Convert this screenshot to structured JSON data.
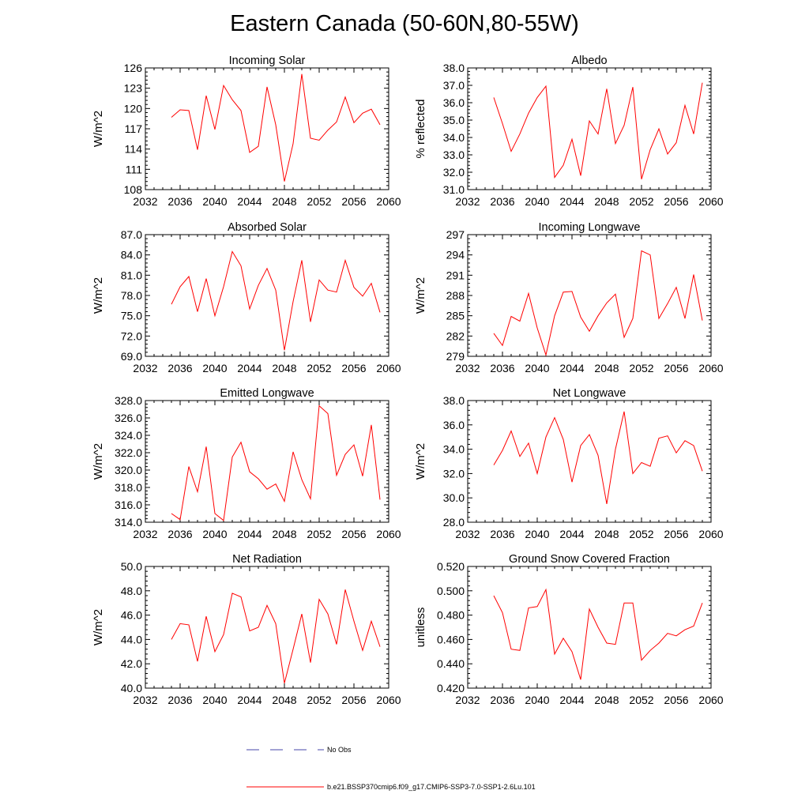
{
  "title": "Eastern Canada (50-60N,80-55W)",
  "legend": {
    "obs_label": "No Obs",
    "obs_color": "#4444aa",
    "model_label": "b.e21.BSSP370cmip6.f09_g17.CMIP6-SSP3-7.0-SSP1-2.6Lu.101",
    "model_color": "#ff0000"
  },
  "chart_data": [
    {
      "type": "line",
      "title": "Incoming Solar",
      "ylabel": "W/m^2",
      "xlim": [
        2032,
        2060
      ],
      "x_ticks": [
        "2032",
        "2036",
        "2040",
        "2044",
        "2048",
        "2052",
        "2056",
        "2060"
      ],
      "ylim": [
        108,
        126
      ],
      "y_ticks": [
        "108",
        "111",
        "114",
        "117",
        "120",
        "123",
        "126"
      ],
      "color": "#ff0000",
      "x": [
        2035,
        2036,
        2037,
        2038,
        2039,
        2040,
        2041,
        2042,
        2043,
        2044,
        2045,
        2046,
        2047,
        2048,
        2049,
        2050,
        2051,
        2052,
        2053,
        2054,
        2055,
        2056,
        2057,
        2058,
        2059
      ],
      "values": [
        118.7,
        119.8,
        119.7,
        113.9,
        121.9,
        116.9,
        123.4,
        121.3,
        119.7,
        113.5,
        114.4,
        123.2,
        117.6,
        109.2,
        114.8,
        125.1,
        115.6,
        115.3,
        116.8,
        118.0,
        121.7,
        117.9,
        119.3,
        119.9,
        117.6
      ]
    },
    {
      "type": "line",
      "title": "Albedo",
      "ylabel": "% reflected",
      "xlim": [
        2032,
        2060
      ],
      "x_ticks": [
        "2032",
        "2036",
        "2040",
        "2044",
        "2048",
        "2052",
        "2056",
        "2060"
      ],
      "ylim": [
        31,
        38
      ],
      "y_ticks": [
        "31.0",
        "32.0",
        "33.0",
        "34.0",
        "35.0",
        "36.0",
        "37.0",
        "38.0"
      ],
      "color": "#ff0000",
      "x": [
        2035,
        2036,
        2037,
        2038,
        2039,
        2040,
        2041,
        2042,
        2043,
        2044,
        2045,
        2046,
        2047,
        2048,
        2049,
        2050,
        2051,
        2052,
        2053,
        2054,
        2055,
        2056,
        2057,
        2058,
        2059
      ],
      "values": [
        36.3,
        34.8,
        33.2,
        34.2,
        35.4,
        36.3,
        36.95,
        31.7,
        32.4,
        33.9,
        31.8,
        34.95,
        34.2,
        36.8,
        33.65,
        34.7,
        36.9,
        31.6,
        33.3,
        34.5,
        33.05,
        33.7,
        35.85,
        34.2,
        37.15
      ]
    },
    {
      "type": "line",
      "title": "Absorbed Solar",
      "ylabel": "W/m^2",
      "xlim": [
        2032,
        2060
      ],
      "x_ticks": [
        "2032",
        "2036",
        "2040",
        "2044",
        "2048",
        "2052",
        "2056",
        "2060"
      ],
      "ylim": [
        69,
        87
      ],
      "y_ticks": [
        "69.0",
        "72.0",
        "75.0",
        "78.0",
        "81.0",
        "84.0",
        "87.0"
      ],
      "color": "#ff0000",
      "x": [
        2035,
        2036,
        2037,
        2038,
        2039,
        2040,
        2041,
        2042,
        2043,
        2044,
        2045,
        2046,
        2047,
        2048,
        2049,
        2050,
        2051,
        2052,
        2053,
        2054,
        2055,
        2056,
        2057,
        2058,
        2059
      ],
      "values": [
        76.7,
        79.3,
        80.8,
        75.6,
        80.5,
        75.0,
        79.3,
        84.5,
        82.4,
        76.0,
        79.5,
        82.0,
        78.8,
        69.9,
        77.1,
        83.2,
        74.1,
        80.3,
        78.8,
        78.5,
        83.2,
        79.2,
        77.9,
        79.8,
        75.5
      ]
    },
    {
      "type": "line",
      "title": "Incoming Longwave",
      "ylabel": "W/m^2",
      "xlim": [
        2032,
        2060
      ],
      "x_ticks": [
        "2032",
        "2036",
        "2040",
        "2044",
        "2048",
        "2052",
        "2056",
        "2060"
      ],
      "ylim": [
        279,
        297
      ],
      "y_ticks": [
        "279",
        "282",
        "285",
        "288",
        "291",
        "294",
        "297"
      ],
      "color": "#ff0000",
      "x": [
        2035,
        2036,
        2037,
        2038,
        2039,
        2040,
        2041,
        2042,
        2043,
        2044,
        2045,
        2046,
        2047,
        2048,
        2049,
        2050,
        2051,
        2052,
        2053,
        2054,
        2055,
        2056,
        2057,
        2058,
        2059
      ],
      "values": [
        282.4,
        280.6,
        284.9,
        284.2,
        288.3,
        283.2,
        279.2,
        285.0,
        288.5,
        288.6,
        284.8,
        282.7,
        285.0,
        286.9,
        288.2,
        281.8,
        284.6,
        294.6,
        294.0,
        284.6,
        286.8,
        289.2,
        284.6,
        291.1,
        284.3
      ]
    },
    {
      "type": "line",
      "title": "Emitted Longwave",
      "ylabel": "W/m^2",
      "xlim": [
        2032,
        2060
      ],
      "x_ticks": [
        "2032",
        "2036",
        "2040",
        "2044",
        "2048",
        "2052",
        "2056",
        "2060"
      ],
      "ylim": [
        314,
        328
      ],
      "y_ticks": [
        "314.0",
        "316.0",
        "318.0",
        "320.0",
        "322.0",
        "324.0",
        "326.0",
        "328.0"
      ],
      "color": "#ff0000",
      "x": [
        2035,
        2036,
        2037,
        2038,
        2039,
        2040,
        2041,
        2042,
        2043,
        2044,
        2045,
        2046,
        2047,
        2048,
        2049,
        2050,
        2051,
        2052,
        2053,
        2054,
        2055,
        2056,
        2057,
        2058,
        2059
      ],
      "values": [
        315.0,
        314.3,
        320.4,
        317.5,
        322.7,
        315.0,
        314.2,
        321.5,
        323.2,
        319.8,
        319.0,
        317.8,
        318.4,
        316.4,
        322.1,
        318.9,
        316.7,
        327.4,
        326.5,
        319.4,
        321.8,
        322.9,
        319.3,
        325.2,
        316.6
      ]
    },
    {
      "type": "line",
      "title": "Net Longwave",
      "ylabel": "W/m^2",
      "xlim": [
        2032,
        2060
      ],
      "x_ticks": [
        "2032",
        "2036",
        "2040",
        "2044",
        "2048",
        "2052",
        "2056",
        "2060"
      ],
      "ylim": [
        28,
        38
      ],
      "y_ticks": [
        "28.0",
        "30.0",
        "32.0",
        "34.0",
        "36.0",
        "38.0"
      ],
      "color": "#ff0000",
      "x": [
        2035,
        2036,
        2037,
        2038,
        2039,
        2040,
        2041,
        2042,
        2043,
        2044,
        2045,
        2046,
        2047,
        2048,
        2049,
        2050,
        2051,
        2052,
        2053,
        2054,
        2055,
        2056,
        2057,
        2058,
        2059
      ],
      "values": [
        32.7,
        33.9,
        35.5,
        33.4,
        34.5,
        32.0,
        35.0,
        36.6,
        34.8,
        31.3,
        34.3,
        35.2,
        33.5,
        29.5,
        34.0,
        37.1,
        32.0,
        32.9,
        32.6,
        34.9,
        35.1,
        33.7,
        34.7,
        34.3,
        32.2
      ]
    },
    {
      "type": "line",
      "title": "Net Radiation",
      "ylabel": "W/m^2",
      "xlim": [
        2032,
        2060
      ],
      "x_ticks": [
        "2032",
        "2036",
        "2040",
        "2044",
        "2048",
        "2052",
        "2056",
        "2060"
      ],
      "ylim": [
        40,
        50
      ],
      "y_ticks": [
        "40.0",
        "42.0",
        "44.0",
        "46.0",
        "48.0",
        "50.0"
      ],
      "color": "#ff0000",
      "x": [
        2035,
        2036,
        2037,
        2038,
        2039,
        2040,
        2041,
        2042,
        2043,
        2044,
        2045,
        2046,
        2047,
        2048,
        2049,
        2050,
        2051,
        2052,
        2053,
        2054,
        2055,
        2056,
        2057,
        2058,
        2059
      ],
      "values": [
        44.0,
        45.3,
        45.2,
        42.2,
        45.9,
        43.0,
        44.4,
        47.8,
        47.5,
        44.7,
        45.0,
        46.8,
        45.3,
        40.4,
        43.2,
        46.1,
        42.1,
        47.3,
        46.1,
        43.6,
        48.1,
        45.5,
        43.1,
        45.5,
        43.4
      ]
    },
    {
      "type": "line",
      "title": "Ground Snow Covered Fraction",
      "ylabel": "unitless",
      "xlim": [
        2032,
        2060
      ],
      "x_ticks": [
        "2032",
        "2036",
        "2040",
        "2044",
        "2048",
        "2052",
        "2056",
        "2060"
      ],
      "ylim": [
        0.42,
        0.52
      ],
      "y_ticks": [
        "0.420",
        "0.440",
        "0.460",
        "0.480",
        "0.500",
        "0.520"
      ],
      "color": "#ff0000",
      "x": [
        2035,
        2036,
        2037,
        2038,
        2039,
        2040,
        2041,
        2042,
        2043,
        2044,
        2045,
        2046,
        2047,
        2048,
        2049,
        2050,
        2051,
        2052,
        2053,
        2054,
        2055,
        2056,
        2057,
        2058,
        2059
      ],
      "values": [
        0.496,
        0.482,
        0.452,
        0.451,
        0.486,
        0.487,
        0.501,
        0.448,
        0.461,
        0.45,
        0.427,
        0.485,
        0.47,
        0.457,
        0.456,
        0.49,
        0.49,
        0.443,
        0.451,
        0.457,
        0.465,
        0.463,
        0.468,
        0.471,
        0.49
      ]
    }
  ]
}
